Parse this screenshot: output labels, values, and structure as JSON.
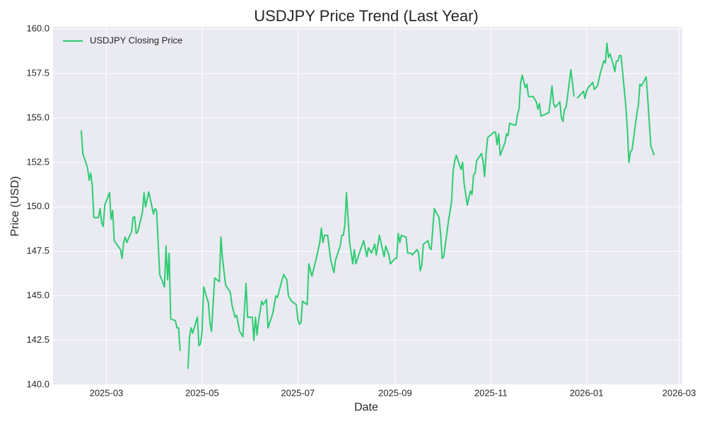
{
  "chart_data": {
    "type": "line",
    "title": "USDJPY Price Trend (Last Year)",
    "x_label": "Date",
    "y_label": "Price (USD)",
    "x": [
      "2025-02-13",
      "2025-02-14",
      "2025-02-17",
      "2025-02-18",
      "2025-02-19",
      "2025-02-20",
      "2025-02-21",
      "2025-02-24",
      "2025-02-25",
      "2025-02-26",
      "2025-02-27",
      "2025-02-28",
      "2025-03-03",
      "2025-03-04",
      "2025-03-05",
      "2025-03-06",
      "2025-03-10",
      "2025-03-11",
      "2025-03-12",
      "2025-03-13",
      "2025-03-14",
      "2025-03-17",
      "2025-03-18",
      "2025-03-19",
      "2025-03-20",
      "2025-03-21",
      "2025-03-24",
      "2025-03-25",
      "2025-03-26",
      "2025-03-28",
      "2025-03-31",
      "2025-04-01",
      "2025-04-02",
      "2025-04-04",
      "2025-04-07",
      "2025-04-08",
      "2025-04-09",
      "2025-04-10",
      "2025-04-11",
      "2025-04-14",
      "2025-04-15",
      "2025-04-16",
      "2025-04-17",
      "2025-04-20",
      "2025-04-22",
      "2025-04-23",
      "2025-04-24",
      "2025-04-25",
      "2025-04-28",
      "2025-04-29",
      "2025-04-30",
      "2025-05-01",
      "2025-05-02",
      "2025-05-05",
      "2025-05-06",
      "2025-05-07",
      "2025-05-09",
      "2025-05-12",
      "2025-05-13",
      "2025-05-14",
      "2025-05-16",
      "2025-05-19",
      "2025-05-20",
      "2025-05-22",
      "2025-05-23",
      "2025-05-25",
      "2025-05-27",
      "2025-05-29",
      "2025-05-30",
      "2025-06-02",
      "2025-06-03",
      "2025-06-04",
      "2025-06-05",
      "2025-06-06",
      "2025-06-08",
      "2025-06-09",
      "2025-06-11",
      "2025-06-12",
      "2025-06-15",
      "2025-06-17",
      "2025-06-18",
      "2025-06-21",
      "2025-06-22",
      "2025-06-24",
      "2025-06-25",
      "2025-06-27",
      "2025-06-30",
      "2025-07-01",
      "2025-07-02",
      "2025-07-03",
      "2025-07-04",
      "2025-07-07",
      "2025-07-08",
      "2025-07-10",
      "2025-07-13",
      "2025-07-15",
      "2025-07-16",
      "2025-07-17",
      "2025-07-18",
      "2025-07-20",
      "2025-07-22",
      "2025-07-24",
      "2025-07-25",
      "2025-07-28",
      "2025-07-29",
      "2025-07-30",
      "2025-07-31",
      "2025-08-01",
      "2025-08-03",
      "2025-08-05",
      "2025-08-06",
      "2025-08-07",
      "2025-08-10",
      "2025-08-12",
      "2025-08-14",
      "2025-08-15",
      "2025-08-17",
      "2025-08-19",
      "2025-08-20",
      "2025-08-22",
      "2025-08-24",
      "2025-08-25",
      "2025-08-26",
      "2025-08-28",
      "2025-08-29",
      "2025-08-31",
      "2025-09-01",
      "2025-09-02",
      "2025-09-03",
      "2025-09-04",
      "2025-09-05",
      "2025-09-08",
      "2025-09-09",
      "2025-09-11",
      "2025-09-12",
      "2025-09-15",
      "2025-09-16",
      "2025-09-17",
      "2025-09-18",
      "2025-09-19",
      "2025-09-22",
      "2025-09-23",
      "2025-09-24",
      "2025-09-26",
      "2025-09-29",
      "2025-09-30",
      "2025-10-01",
      "2025-10-02",
      "2025-10-05",
      "2025-10-07",
      "2025-10-08",
      "2025-10-09",
      "2025-10-10",
      "2025-10-13",
      "2025-10-14",
      "2025-10-15",
      "2025-10-17",
      "2025-10-19",
      "2025-10-20",
      "2025-10-21",
      "2025-10-22",
      "2025-10-23",
      "2025-10-26",
      "2025-10-27",
      "2025-10-28",
      "2025-10-29",
      "2025-10-30",
      "2025-11-03",
      "2025-11-04",
      "2025-11-05",
      "2025-11-06",
      "2025-11-07",
      "2025-11-10",
      "2025-11-11",
      "2025-11-12",
      "2025-11-13",
      "2025-11-16",
      "2025-11-17",
      "2025-11-18",
      "2025-11-19",
      "2025-11-20",
      "2025-11-21",
      "2025-11-23",
      "2025-11-24",
      "2025-11-25",
      "2025-11-28",
      "2025-11-30",
      "2025-12-01",
      "2025-12-02",
      "2025-12-03",
      "2025-12-08",
      "2025-12-09",
      "2025-12-10",
      "2025-12-11",
      "2025-12-12",
      "2025-12-15",
      "2025-12-16",
      "2025-12-17",
      "2025-12-18",
      "2025-12-19",
      "2025-12-22",
      "2025-12-23",
      "2025-12-24",
      "2025-12-25",
      "2025-12-26",
      "2025-12-30",
      "2025-12-31",
      "2026-01-01",
      "2026-01-02",
      "2026-01-05",
      "2026-01-06",
      "2026-01-08",
      "2026-01-10",
      "2026-01-12",
      "2026-01-13",
      "2026-01-14",
      "2026-01-15",
      "2026-01-16",
      "2026-01-18",
      "2026-01-19",
      "2026-01-20",
      "2026-01-21",
      "2026-01-22",
      "2026-01-23",
      "2026-01-26",
      "2026-01-27",
      "2026-01-28",
      "2026-01-29",
      "2026-01-30",
      "2026-02-02",
      "2026-02-03",
      "2026-02-04",
      "2026-02-05",
      "2026-02-08",
      "2026-02-09",
      "2026-02-11",
      "2026-02-12",
      "2026-02-13"
    ],
    "series": [
      {
        "name": "USDJPY Closing Price",
        "color": "#2ecc71",
        "values": [
          154.3,
          153.0,
          152.2,
          151.5,
          151.9,
          151.2,
          149.4,
          149.4,
          149.9,
          149.1,
          148.9,
          150.1,
          150.8,
          149.3,
          149.8,
          148.1,
          147.6,
          147.1,
          148.0,
          148.3,
          148.0,
          148.6,
          149.4,
          149.45,
          148.5,
          148.6,
          149.7,
          150.8,
          150.0,
          150.85,
          149.6,
          149.9,
          149.8,
          146.2,
          145.5,
          147.8,
          145.9,
          147.4,
          143.7,
          143.6,
          143.2,
          143.2,
          141.9,
          null,
          140.9,
          142.7,
          143.2,
          142.9,
          143.8,
          142.2,
          142.3,
          143.0,
          145.5,
          144.6,
          143.5,
          143.0,
          146.0,
          145.8,
          148.3,
          147.1,
          145.6,
          145.2,
          144.5,
          143.8,
          143.9,
          143.0,
          142.7,
          145.7,
          143.8,
          143.8,
          142.5,
          143.8,
          142.8,
          143.6,
          144.7,
          144.5,
          144.8,
          143.2,
          144.0,
          145.0,
          144.9,
          145.9,
          146.2,
          145.9,
          145.0,
          144.7,
          144.5,
          143.7,
          143.4,
          143.5,
          144.7,
          144.5,
          146.8,
          146.1,
          147.2,
          148.0,
          148.8,
          148.0,
          148.4,
          148.4,
          147.0,
          146.3,
          147.0,
          147.8,
          148.4,
          148.4,
          149.0,
          150.8,
          148.0,
          146.8,
          147.6,
          146.8,
          147.6,
          148.1,
          147.2,
          147.7,
          147.4,
          147.9,
          147.3,
          148.4,
          147.6,
          147.2,
          147.8,
          147.3,
          146.8,
          147.0,
          147.1,
          147.1,
          148.5,
          148.0,
          148.4,
          148.3,
          147.4,
          147.4,
          147.3,
          147.6,
          147.4,
          146.4,
          146.7,
          147.9,
          148.1,
          147.7,
          147.6,
          149.9,
          149.4,
          148.5,
          147.1,
          147.2,
          149.2,
          150.3,
          152.0,
          152.6,
          152.9,
          152.1,
          152.5,
          151.3,
          150.1,
          150.9,
          150.7,
          151.8,
          151.9,
          152.6,
          153.0,
          152.6,
          151.7,
          153.0,
          153.9,
          154.2,
          154.2,
          153.5,
          154.1,
          152.9,
          153.6,
          154.1,
          154.0,
          154.7,
          154.6,
          154.6,
          155.2,
          155.5,
          157.0,
          157.4,
          156.7,
          156.9,
          156.2,
          156.2,
          155.9,
          155.5,
          155.8,
          155.1,
          155.3,
          156.0,
          156.8,
          155.8,
          155.6,
          155.9,
          155.0,
          154.8,
          155.5,
          155.6,
          157.7,
          157.0,
          156.2,
          null,
          156.1,
          156.5,
          156.1,
          156.5,
          156.7,
          157.0,
          156.6,
          156.8,
          157.6,
          158.2,
          158.1,
          159.2,
          158.4,
          158.6,
          158.0,
          157.6,
          158.2,
          158.2,
          158.5,
          158.5,
          155.7,
          154.4,
          152.5,
          153.1,
          153.2,
          155.2,
          155.7,
          156.9,
          156.8,
          157.3,
          156.1,
          153.4,
          153.2,
          152.9
        ]
      }
    ],
    "xlim": [
      "2025-01-26",
      "2026-03-03"
    ],
    "xticks": [
      {
        "value": "2025-03-01",
        "label": "2025-03"
      },
      {
        "value": "2025-05-01",
        "label": "2025-05"
      },
      {
        "value": "2025-07-01",
        "label": "2025-07"
      },
      {
        "value": "2025-09-01",
        "label": "2025-09"
      },
      {
        "value": "2025-11-01",
        "label": "2025-11"
      },
      {
        "value": "2026-01-01",
        "label": "2026-01"
      },
      {
        "value": "2026-03-01",
        "label": "2026-03"
      }
    ],
    "ylim": [
      139.98,
      160.12
    ],
    "yticks": [
      {
        "value": 140,
        "label": "140.0"
      },
      {
        "value": 142.5,
        "label": "142.5"
      },
      {
        "value": 145,
        "label": "145.0"
      },
      {
        "value": 147.5,
        "label": "147.5"
      },
      {
        "value": 150,
        "label": "150.0"
      },
      {
        "value": 152.5,
        "label": "152.5"
      },
      {
        "value": 155,
        "label": "155.0"
      },
      {
        "value": 157.5,
        "label": "157.5"
      },
      {
        "value": 160,
        "label": "160.0"
      }
    ],
    "grid": true,
    "legend": "upper left"
  }
}
